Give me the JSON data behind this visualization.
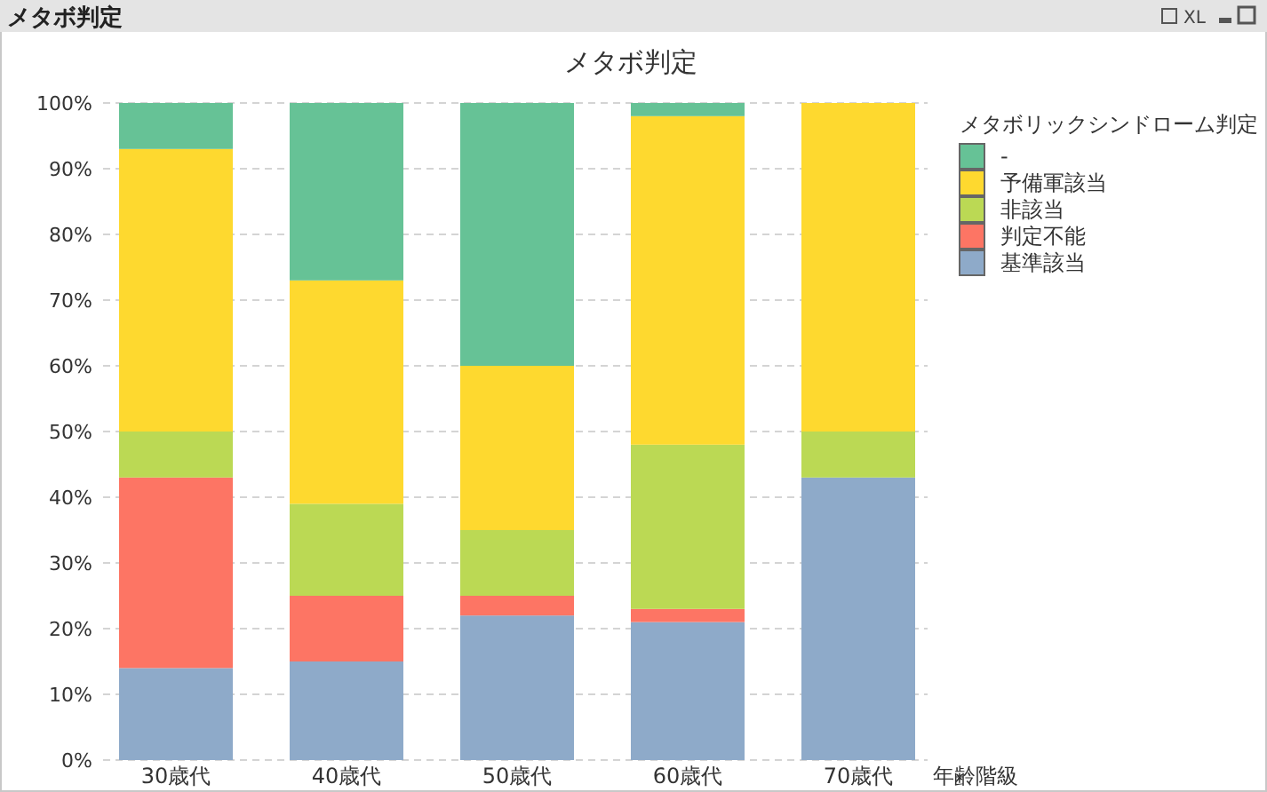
{
  "chart_data": {
    "type": "bar",
    "stacked": true,
    "title": "メタボ判定",
    "xlabel": "年齢階級",
    "legend_title": "メタボリックシンドローム判定",
    "annotations": [
      "メタボ判定",
      "XL"
    ],
    "categories": [
      "30歳代",
      "40歳代",
      "50歳代",
      "60歳代",
      "70歳代"
    ],
    "series": [
      {
        "name": "基準該当",
        "color": "#8eaac9",
        "values": [
          14,
          15,
          22,
          21,
          43
        ]
      },
      {
        "name": "判定不能",
        "color": "#fd7564",
        "values": [
          29,
          10,
          3,
          2,
          0
        ]
      },
      {
        "name": "非該当",
        "color": "#bbd954",
        "values": [
          7,
          14,
          10,
          25,
          7
        ]
      },
      {
        "name": "予備軍該当",
        "color": "#fed92f",
        "values": [
          43,
          34,
          25,
          50,
          50
        ]
      },
      {
        "name": "-",
        "color": "#66c296",
        "values": [
          7,
          27,
          40,
          2,
          0
        ]
      }
    ],
    "ylim": [
      0,
      100
    ],
    "yticks": [
      {
        "value": 0,
        "label": "0%"
      },
      {
        "value": 10,
        "label": "10%"
      },
      {
        "value": 20,
        "label": "20%"
      },
      {
        "value": 30,
        "label": "30%"
      },
      {
        "value": 40,
        "label": "40%"
      },
      {
        "value": 50,
        "label": "50%"
      },
      {
        "value": 60,
        "label": "60%"
      },
      {
        "value": 70,
        "label": "70%"
      },
      {
        "value": 80,
        "label": "80%"
      },
      {
        "value": 90,
        "label": "90%"
      },
      {
        "value": 100,
        "label": "100%"
      }
    ],
    "grid": "y",
    "legend": "top right"
  }
}
